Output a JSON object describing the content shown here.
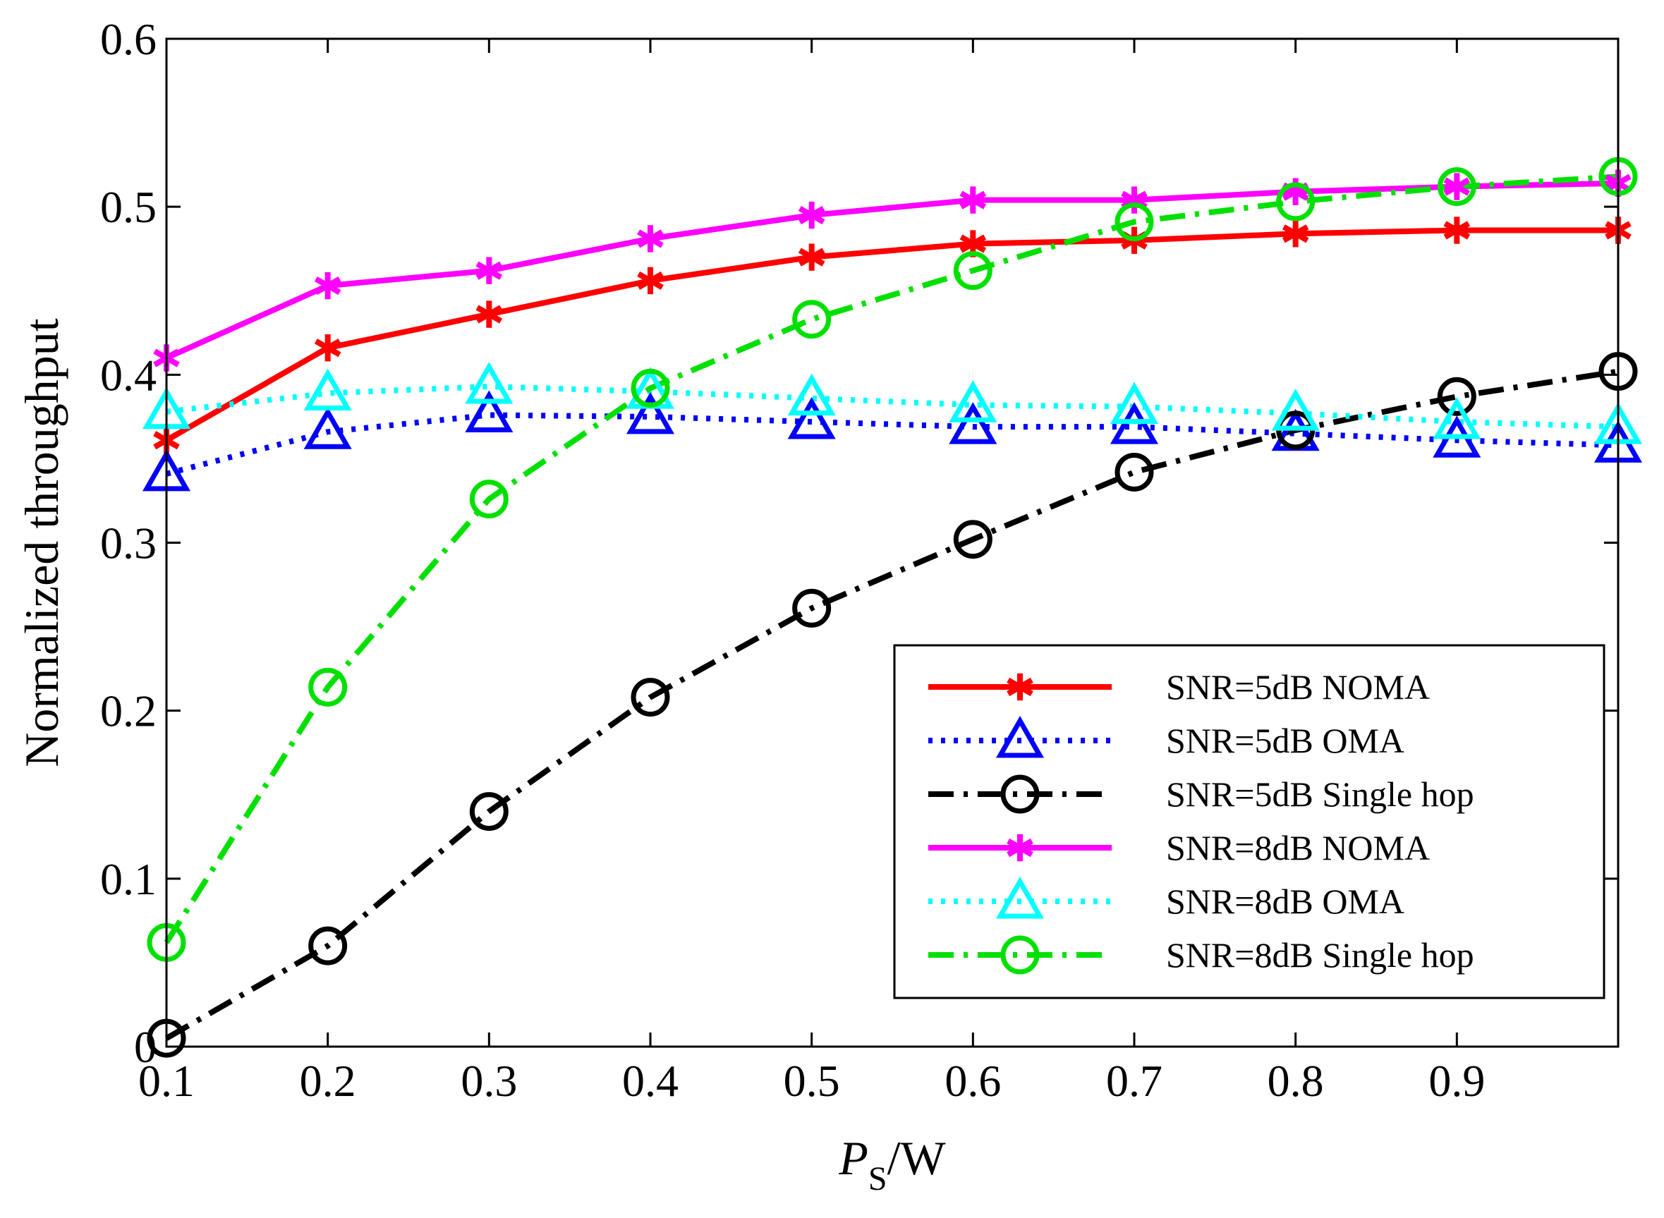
{
  "chart_data": {
    "type": "line",
    "title": "",
    "xlabel_main": "P",
    "xlabel_sub": "S",
    "xlabel_suffix": "/W",
    "ylabel": "Normalized throughput",
    "xlim": [
      0.1,
      1.0
    ],
    "ylim": [
      0,
      0.6
    ],
    "x_ticks": [
      0.1,
      0.2,
      0.3,
      0.4,
      0.5,
      0.6,
      0.7,
      0.8,
      0.9
    ],
    "x_tick_labels": [
      "0.1",
      "0.2",
      "0.3",
      "0.4",
      "0.5",
      "0.6",
      "0.7",
      "0.8",
      "0.9"
    ],
    "y_ticks": [
      0,
      0.1,
      0.2,
      0.3,
      0.4,
      0.5,
      0.6
    ],
    "y_tick_labels": [
      "0",
      "0.1",
      "0.2",
      "0.3",
      "0.4",
      "0.5",
      "0.6"
    ],
    "grid": false,
    "legend_position": "bottom-right",
    "x": [
      0.1,
      0.2,
      0.3,
      0.4,
      0.5,
      0.6,
      0.7,
      0.8,
      0.9,
      1.0
    ],
    "series": [
      {
        "name": "SNR=5dB NOMA",
        "color": "#ff0000",
        "dash": "solid",
        "marker": "asterisk",
        "values": [
          0.361,
          0.416,
          0.436,
          0.456,
          0.47,
          0.478,
          0.48,
          0.484,
          0.486,
          0.486
        ]
      },
      {
        "name": "SNR=5dB OMA",
        "color": "#0000ff",
        "dash": "dotted",
        "marker": "triangle",
        "values": [
          0.341,
          0.366,
          0.376,
          0.375,
          0.372,
          0.369,
          0.369,
          0.365,
          0.361,
          0.358
        ]
      },
      {
        "name": "SNR=5dB Single hop",
        "color": "#000000",
        "dash": "dashdot",
        "marker": "circle",
        "values": [
          0.005,
          0.06,
          0.14,
          0.208,
          0.261,
          0.302,
          0.342,
          0.367,
          0.387,
          0.402
        ]
      },
      {
        "name": "SNR=8dB NOMA",
        "color": "#ff00ff",
        "dash": "solid",
        "marker": "asterisk",
        "values": [
          0.41,
          0.453,
          0.462,
          0.481,
          0.495,
          0.504,
          0.504,
          0.509,
          0.512,
          0.514
        ]
      },
      {
        "name": "SNR=8dB OMA",
        "color": "#00ffff",
        "dash": "dotted",
        "marker": "triangle",
        "values": [
          0.378,
          0.389,
          0.393,
          0.39,
          0.386,
          0.382,
          0.381,
          0.377,
          0.372,
          0.369
        ]
      },
      {
        "name": "SNR=8dB Single hop",
        "color": "#00e000",
        "dash": "dashdot",
        "marker": "circle",
        "values": [
          0.062,
          0.214,
          0.326,
          0.392,
          0.433,
          0.462,
          0.491,
          0.503,
          0.512,
          0.518
        ]
      }
    ]
  }
}
